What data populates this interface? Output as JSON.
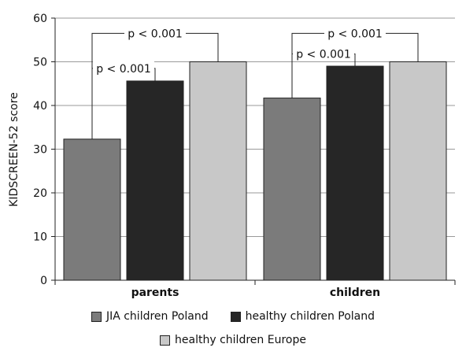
{
  "chart_data": {
    "type": "bar",
    "ylabel": "KIDSCREEN-52 score",
    "ylim": [
      0,
      60
    ],
    "yticks": [
      0,
      10,
      20,
      30,
      40,
      50,
      60
    ],
    "grid": true,
    "categories": [
      "parents",
      "children"
    ],
    "series": [
      {
        "name": "JIA children Poland",
        "color": "#7b7b7b",
        "values": [
          32.3,
          41.7
        ]
      },
      {
        "name": "healthy children Poland",
        "color": "#262626",
        "values": [
          45.6,
          49.0
        ]
      },
      {
        "name": "healthy children Europe",
        "color": "#c8c8c8",
        "values": [
          50.0,
          50.0
        ]
      }
    ],
    "annotations": [
      {
        "text": "p < 0.001",
        "category": 0,
        "from_series": 0,
        "to_series": 2,
        "level": 56.5
      },
      {
        "text": "p < 0.001",
        "category": 0,
        "from_series": 0,
        "to_series": 1,
        "level": 48.5
      },
      {
        "text": "p < 0.001",
        "category": 1,
        "from_series": 0,
        "to_series": 2,
        "level": 56.5
      },
      {
        "text": "p < 0.001",
        "category": 1,
        "from_series": 0,
        "to_series": 1,
        "level": 51.8
      }
    ],
    "legend_position": "bottom"
  }
}
